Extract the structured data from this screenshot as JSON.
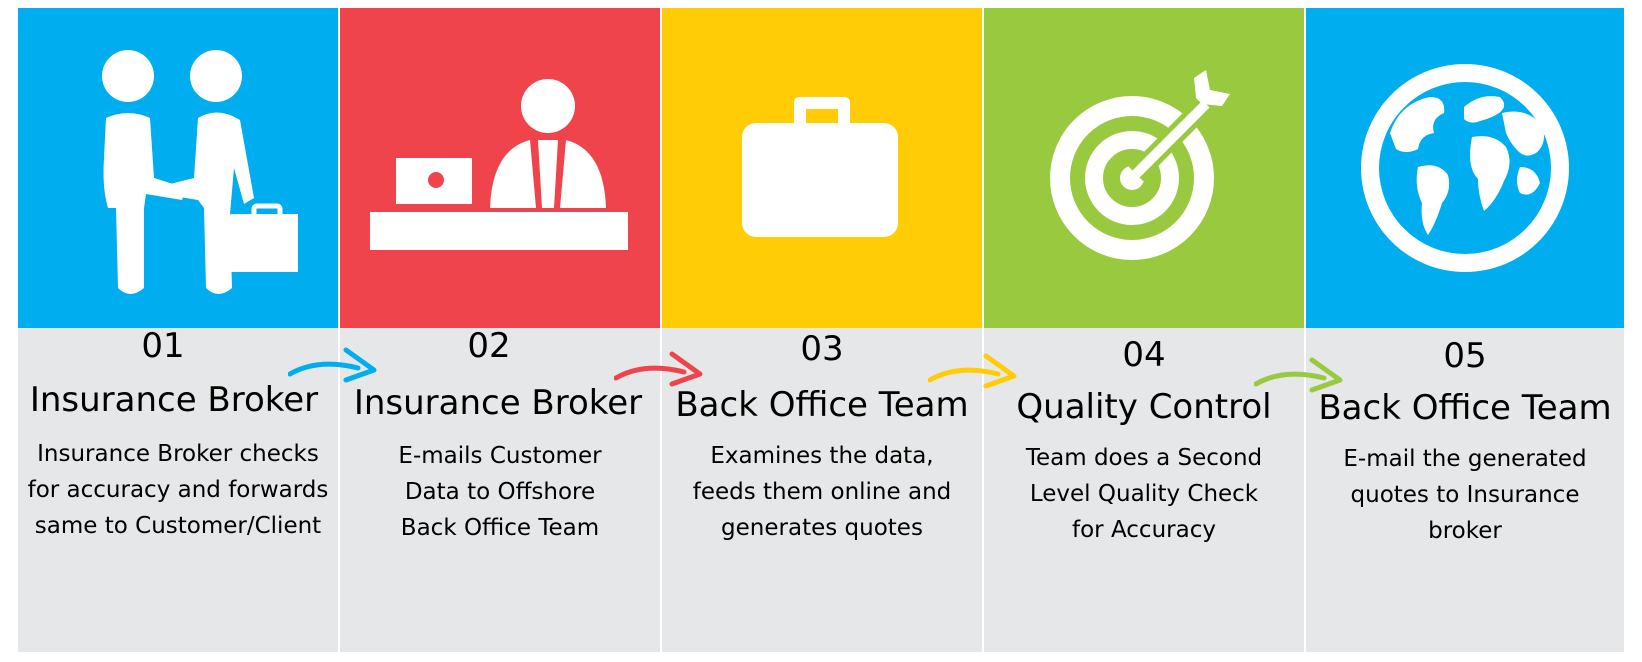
{
  "colors": {
    "step1": "#00adef",
    "step2": "#ef444b",
    "step3": "#ffcc05",
    "step4": "#99c93e",
    "step5": "#00adef",
    "panel": "#e6e7e8"
  },
  "steps": [
    {
      "number": "01",
      "title": "Insurance Broker",
      "desc": [
        "Insurance Broker checks",
        "for accuracy and forwards",
        "same to Customer/Client"
      ],
      "icon": "handshake-icon"
    },
    {
      "number": "02",
      "title": "Insurance Broker",
      "desc": [
        "E-mails Customer",
        "Data to Offshore",
        "Back Office Team"
      ],
      "icon": "desk-person-icon"
    },
    {
      "number": "03",
      "title": "Back Office Team",
      "desc": [
        "Examines the data,",
        "feeds them online and",
        "generates quotes"
      ],
      "icon": "briefcase-icon"
    },
    {
      "number": "04",
      "title": "Quality Control",
      "desc": [
        "Team does a Second",
        "Level Quality Check",
        "for Accuracy"
      ],
      "icon": "target-icon"
    },
    {
      "number": "05",
      "title": "Back Office Team",
      "desc": [
        "E-mail the generated",
        "quotes to Insurance",
        "broker"
      ],
      "icon": "globe-icon"
    }
  ]
}
